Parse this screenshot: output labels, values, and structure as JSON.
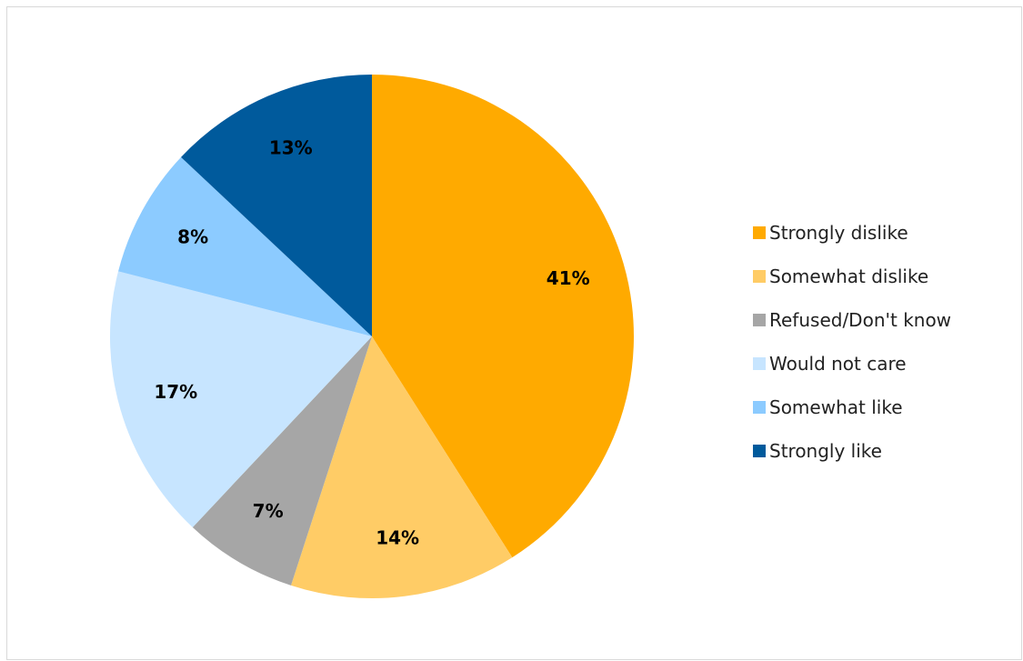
{
  "chart_data": {
    "type": "pie",
    "title": "",
    "legend_position": "right",
    "start_angle": "top, clockwise",
    "slices": [
      {
        "label": "Strongly dislike",
        "value": 41,
        "display": "41%",
        "color": "#FFAA00"
      },
      {
        "label": "Somewhat dislike",
        "value": 14,
        "display": "14%",
        "color": "#FFCC66"
      },
      {
        "label": "Refused/Don't know",
        "value": 7,
        "display": "7%",
        "color": "#A6A6A6"
      },
      {
        "label": "Would not care",
        "value": 17,
        "display": "17%",
        "color": "#C7E5FF"
      },
      {
        "label": "Somewhat like",
        "value": 8,
        "display": "8%",
        "color": "#8CCBFF"
      },
      {
        "label": "Strongly like",
        "value": 13,
        "display": "13%",
        "color": "#005A9C"
      }
    ]
  }
}
